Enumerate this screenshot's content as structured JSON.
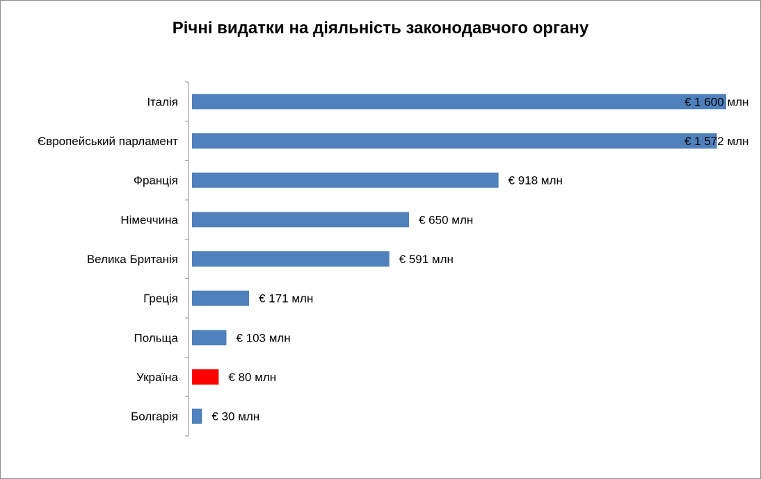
{
  "chart_data": {
    "type": "bar",
    "orientation": "horizontal",
    "title": "Річні видатки на діяльність законодавчого органу",
    "categories": [
      "Італія",
      "Європейський парламент",
      "Франція",
      "Німеччина",
      "Велика Британія",
      "Греція",
      "Польща",
      "Україна",
      "Болгарія"
    ],
    "values": [
      1600,
      1572,
      918,
      650,
      591,
      171,
      103,
      80,
      30
    ],
    "data_labels": [
      "€ 1 600 млн",
      "€ 1 572 млн",
      "€ 918 млн",
      "€ 650 млн",
      "€ 591 млн",
      "€ 171 млн",
      "€ 103 млн",
      "€ 80 млн",
      "€ 30 млн"
    ],
    "unit": "млн €",
    "xlim": [
      0,
      1600
    ],
    "grid": false,
    "legend": "none",
    "colors": {
      "default": "#4f81bd",
      "highlight": "#ff0000",
      "highlight_category": "Україна"
    }
  }
}
